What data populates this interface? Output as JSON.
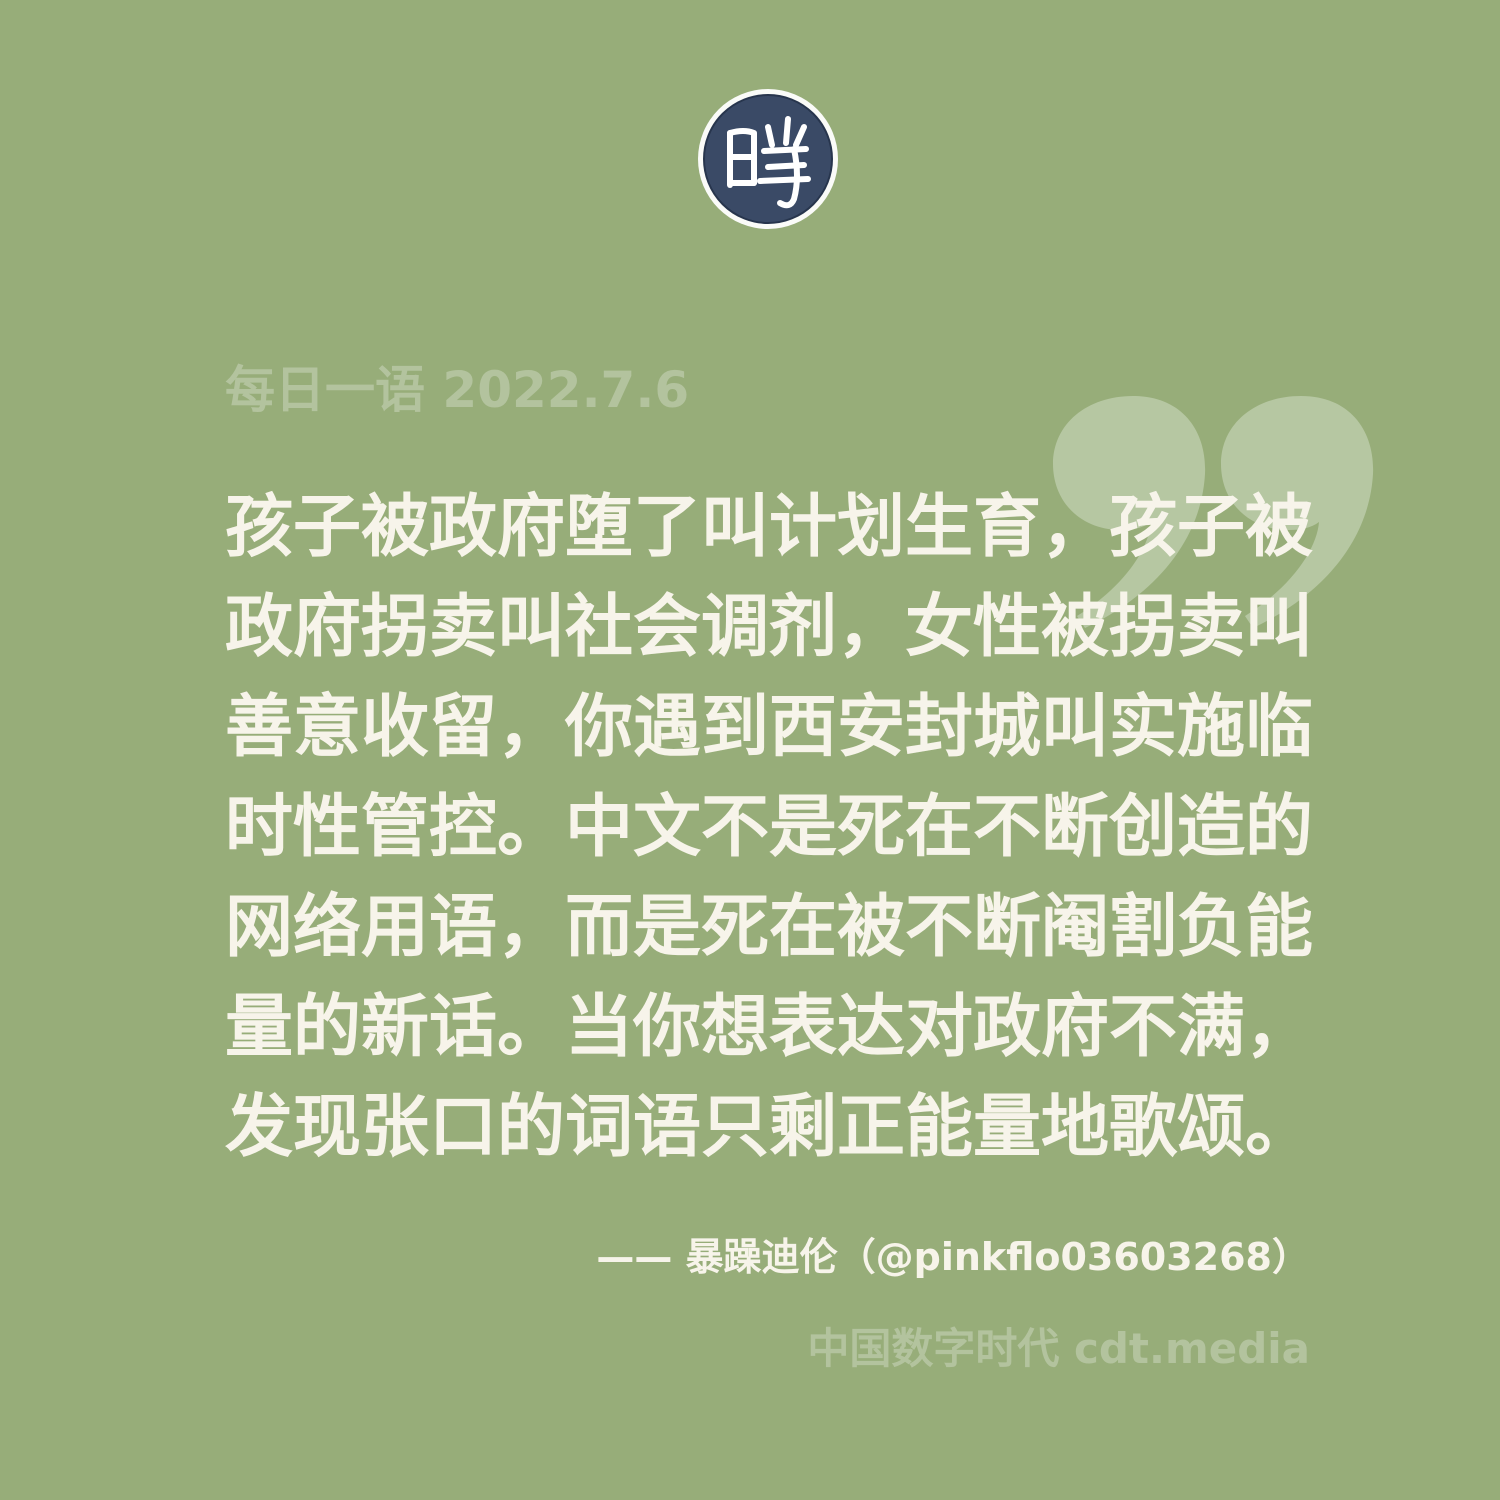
{
  "header": {
    "logo_glyph": "时"
  },
  "quote": {
    "label": "每日一语 2022.7.6",
    "lines": [
      "孩子被政府堕了叫计划生育，孩子被",
      "政府拐卖叫社会调剂，女性被拐卖叫",
      "善意收留，你遇到西安封城叫实施临",
      "时性管控。中文不是死在不断创造的",
      "网络用语，而是死在被不断阉割负能",
      "量的新话。当你想表达对政府不满，",
      "发现张口的词语只剩正能量地歌颂。"
    ],
    "attribution": "—— 暴躁迪伦（@pinkflo03603268）"
  },
  "footer": {
    "source": "中国数字时代 cdt.media"
  },
  "colors": {
    "background": "#97ad79",
    "quote_text": "#f7f4ea",
    "muted_text": "#b3c39e",
    "logo_fill": "#3a4a66",
    "quote_mark": "#b6c7a2"
  }
}
